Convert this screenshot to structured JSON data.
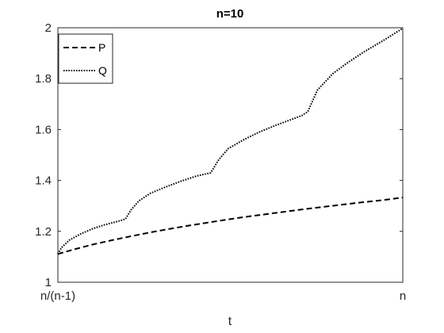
{
  "chart_data": {
    "type": "line",
    "title": "n=10",
    "xlabel": "t",
    "ylabel": "",
    "x_ticks": [
      "n/(n-1)",
      "n"
    ],
    "xlim": [
      1.1111,
      10
    ],
    "ylim": [
      1,
      2
    ],
    "y_ticks": [
      1,
      1.2,
      1.4,
      1.6,
      1.8,
      2
    ],
    "grid": false,
    "legend": "top-left",
    "series": [
      {
        "name": "P",
        "style": "dashed",
        "color": "#000000",
        "x": [
          1.1111,
          1.5,
          2,
          2.5,
          3,
          3.5,
          4,
          4.5,
          5,
          5.5,
          6,
          6.5,
          7,
          7.5,
          8,
          8.5,
          9,
          9.5,
          10
        ],
        "y": [
          1.111,
          1.128,
          1.148,
          1.165,
          1.181,
          1.196,
          1.21,
          1.223,
          1.235,
          1.247,
          1.258,
          1.268,
          1.278,
          1.288,
          1.297,
          1.306,
          1.315,
          1.323,
          1.333
        ]
      },
      {
        "name": "Q",
        "style": "dotted",
        "color": "#000000",
        "x": [
          1.1111,
          1.2,
          1.4,
          1.7,
          2.0,
          2.3,
          2.6,
          2.85,
          3.0,
          3.2,
          3.5,
          3.9,
          4.3,
          4.7,
          5.05,
          5.25,
          5.5,
          5.9,
          6.3,
          6.7,
          7.1,
          7.4,
          7.55,
          7.8,
          8.2,
          8.6,
          9.0,
          9.5,
          10.0
        ],
        "y": [
          1.111,
          1.135,
          1.165,
          1.19,
          1.21,
          1.225,
          1.237,
          1.248,
          1.285,
          1.32,
          1.35,
          1.375,
          1.398,
          1.418,
          1.43,
          1.48,
          1.525,
          1.56,
          1.59,
          1.615,
          1.638,
          1.655,
          1.67,
          1.755,
          1.82,
          1.865,
          1.905,
          1.95,
          1.998
        ]
      }
    ]
  }
}
